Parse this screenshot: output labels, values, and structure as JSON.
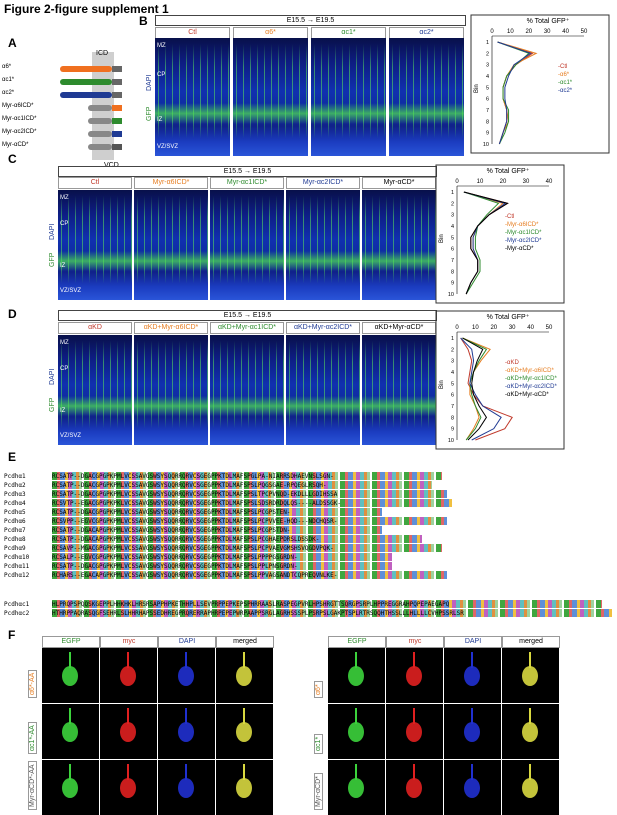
{
  "figure_title": "Figure 2-figure supplement 1",
  "panels": {
    "A": {
      "letter": "A",
      "icd_label": "ICD",
      "vcd_label": "VCD",
      "constructs": [
        "α6*",
        "αc1*",
        "αc2*",
        "Myr-α6ICD*",
        "Myr-αc1ICD*",
        "Myr-αc2ICD*",
        "Myr-αCD*"
      ]
    },
    "B": {
      "letter": "B",
      "timeline": "E15.5 → E19.5",
      "conditions": [
        "Ctl",
        "α6*",
        "αc1*",
        "αc2*"
      ],
      "condition_colors": [
        "#c0392b",
        "#e67e22",
        "#2e8b2e",
        "#1f3a93"
      ],
      "layers": [
        "MZ",
        "CP",
        "IZ",
        "VZ/SVZ"
      ],
      "stain": [
        "GFP",
        "DAPI"
      ],
      "graph_title": "% Total GFP⁺",
      "graph_ticks": [
        "0",
        "10",
        "20",
        "30",
        "40",
        "50"
      ],
      "bin_label": "Bin",
      "bin_ticks": [
        "1",
        "2",
        "3",
        "4",
        "5",
        "6",
        "7",
        "8",
        "9",
        "10"
      ],
      "legend": [
        "Ctl",
        "α6*",
        "αc1*",
        "αc2*"
      ]
    },
    "C": {
      "letter": "C",
      "timeline": "E15.5 → E19.5",
      "conditions": [
        "Ctl",
        "Myr-α6ICD*",
        "Myr-αc1ICD*",
        "Myr-αc2ICD*",
        "Myr-αCD*"
      ],
      "condition_colors": [
        "#c0392b",
        "#e67e22",
        "#2e8b2e",
        "#1f3a93",
        "#000000"
      ],
      "layers": [
        "MZ",
        "CP",
        "IZ",
        "VZ/SVZ"
      ],
      "stain": [
        "GFP",
        "DAPI"
      ],
      "graph_title": "% Total GFP⁺",
      "graph_ticks": [
        "0",
        "10",
        "20",
        "30",
        "40"
      ],
      "bin_label": "Bin",
      "bin_ticks": [
        "1",
        "2",
        "3",
        "4",
        "5",
        "6",
        "7",
        "8",
        "9",
        "10"
      ],
      "legend": [
        "Ctl",
        "Myr-α6ICD*",
        "Myr-αc1ICD*",
        "Myr-αc2ICD*",
        "Myr-αCD*"
      ]
    },
    "D": {
      "letter": "D",
      "timeline": "E15.5 → E19.5",
      "conditions": [
        "αKD",
        "αKD+Myr-α6ICD*",
        "αKD+Myr-αc1ICD*",
        "αKD+Myr-αc2ICD*",
        "αKD+Myr-αCD*"
      ],
      "condition_colors": [
        "#c0392b",
        "#e67e22",
        "#2e8b2e",
        "#1f3a93",
        "#000000"
      ],
      "layers": [
        "MZ",
        "CP",
        "IZ",
        "VZ/SVZ"
      ],
      "stain": [
        "GFP",
        "DAPI"
      ],
      "graph_title": "% Total GFP⁺",
      "graph_ticks": [
        "0",
        "10",
        "20",
        "30",
        "40",
        "50"
      ],
      "bin_label": "Bin",
      "bin_ticks": [
        "1",
        "2",
        "3",
        "4",
        "5",
        "6",
        "7",
        "8",
        "9",
        "10"
      ],
      "legend": [
        "αKD",
        "αKD+Myr-α6ICD*",
        "αKD+Myr-αc1ICD*",
        "αKD+Myr-αc2ICD*",
        "αKD+Myr-αCD*"
      ]
    },
    "E": {
      "letter": "E",
      "sequences_a": [
        {
          "name": "Pcdhα1",
          "seq": "RCSATP--DGACGPGPKPMLVCSSAVGSWSYSQQRRQRVCSGEGPPKTDLMAFSPGLPA-NIARRSDHAEVNSLSGN-"
        },
        {
          "name": "Pcdhα2",
          "seq": "RCSATP--DGACGPGPKPMLVCSSAVGSWSYSQQRRQRVCSGEGPPKTDLMAFSPSLPQGSGAE-RPQEGLRSQH-"
        },
        {
          "name": "Pcdhα3",
          "seq": "RCSATP--DGACGPGPKPMLVCSSAVGSWSYSQQRRQRVCSGEGPPKTDLMAFSPSLTPCPVNQD-EKDLLLGDIHSSA"
        },
        {
          "name": "Pcdhα4",
          "seq": "RCSVTP--EGACGPGPKPKLVCSSAVGSWSYSQQRRQRVCSGEGPPKTDLMAFSPSLSDSRDRDQLQS----ALDSSGK-"
        },
        {
          "name": "Pcdhα5",
          "seq": "RCSATP--DGACGPGPKPMLVCSSAVGSWSYSQQRRQRVCSGEGPPKTDLMAFSPSLPCGPSTEN-"
        },
        {
          "name": "Pcdhα6",
          "seq": "RCSVPP--EGVCGPGPKPMLVCSSAVGSWSYSQQRRQRVCSGEGPPKTDLMAFSPSLPCPVVEE-HQD---NDCHQSR-"
        },
        {
          "name": "Pcdhα7",
          "seq": "RCSATP--DGACAPGPKPMLVCSSAVGSWSYSQQRRQRVCSGEGPPKTDLMAFSPSLPCGPSTDN-"
        },
        {
          "name": "Pcdhα8",
          "seq": "RCSATP--DGACAPGPKPMLVCSSAVGSWSYSQQRRQRVCSGEGPPKTDLMAFSPSLPCGHAEPDRSLDSSDK-"
        },
        {
          "name": "Pcdhα9",
          "seq": "RCSAVP--MGACGPGPKPMLVCSSAVGSWSYSQQRRQRVCSGEGPPKTDLMAFSPSLPCPVAEVGMSHSVQGDVPQK-"
        },
        {
          "name": "Pcdhα10",
          "seq": "RCSALP--EGVCGPGPKPMLVCSSAVGSWSYSQQRRQRVCSGEGPPKTDLMAFSPSLPPPPGSGRDN-"
        },
        {
          "name": "Pcdhα11",
          "seq": "RCSATP--DGACGPGPKPMLVCSSAVGSWSYSQQRRQRVCSGEGPPKTDLMAFSPSLPPLPNSGRDN-"
        },
        {
          "name": "Pcdhα12",
          "seq": "RCHARS--EGACAPGPKPMLVCSSAVGSWSYSQQRRQRVCSGEGPPKTDLMAFSPSLPPVAGSANDTCQPREQVNLKE-"
        }
      ],
      "sequences_b": [
        {
          "name": "Pcdhαc1",
          "seq": "HLPRQPSPQQSKGEPPLHHKHKLHRSRSAPPHPKETHHPLLSEVPRPPEPKEPSPHRRAASLRASPEGPVRLHPSHRGTTSQRGPSRPLHPPREGGRAHPQPEPAEGAPQ"
        },
        {
          "name": "Pcdhαc2",
          "seq": "HTHRPPAQRASQGFSEHRLSLHHRHAPSSEDHREGPRQRERRAPHRPEPEPWRPAAPPSRGLAGRHSSSPLPSRPSLGAKPTSPLRTRSQQHTHSSLLLHLLLLCVHPSSRLSR"
        }
      ]
    },
    "F": {
      "letter": "F",
      "col_heads": [
        "EGFP",
        "myc",
        "DAPI",
        "merged"
      ],
      "col_head_colors": [
        "#2e8b2e",
        "#c0392b",
        "#1f3a93",
        "#000000"
      ],
      "left_rows": [
        "α6*-AA",
        "αc1*-AA",
        "Myr-αCD*-AA"
      ],
      "right_rows": [
        "α6*",
        "αc1*",
        "Myr-αCD*"
      ],
      "row_colors": [
        "#e67e22",
        "#2e8b2e",
        "#555555"
      ]
    }
  }
}
